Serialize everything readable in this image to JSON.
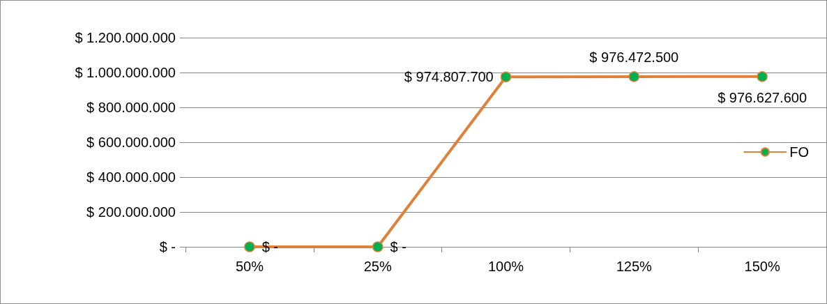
{
  "chart_data": {
    "type": "line",
    "categories": [
      "50%",
      "25%",
      "100%",
      "125%",
      "150%"
    ],
    "series": [
      {
        "name": "FO",
        "color": "#e0803a",
        "colors": [
          "#00b050",
          "#00b050",
          "#00b050",
          "#00b050",
          "#00b050"
        ],
        "values": [
          0,
          0,
          974807700,
          976472500,
          976627600
        ],
        "value_labels": [
          "$ -",
          "$ -",
          "$ 974.807.700",
          "$ 976.472.500",
          "$ 976.627.600"
        ]
      }
    ],
    "ylim": [
      0,
      1200000000
    ],
    "yticks": [
      {
        "value": 0,
        "label": "$ -"
      },
      {
        "value": 200000000,
        "label": "$ 200.000.000"
      },
      {
        "value": 400000000,
        "label": "$ 400.000.000"
      },
      {
        "value": 600000000,
        "label": "$ 600.000.000"
      },
      {
        "value": 800000000,
        "label": "$ 800.000.000"
      },
      {
        "value": 1000000000,
        "label": "$ 1.000.000.000"
      },
      {
        "value": 1200000000,
        "label": "$ 1.200.000.000"
      }
    ],
    "grid": "y",
    "legend": "right",
    "marker": "circle",
    "line_style": "solid"
  }
}
